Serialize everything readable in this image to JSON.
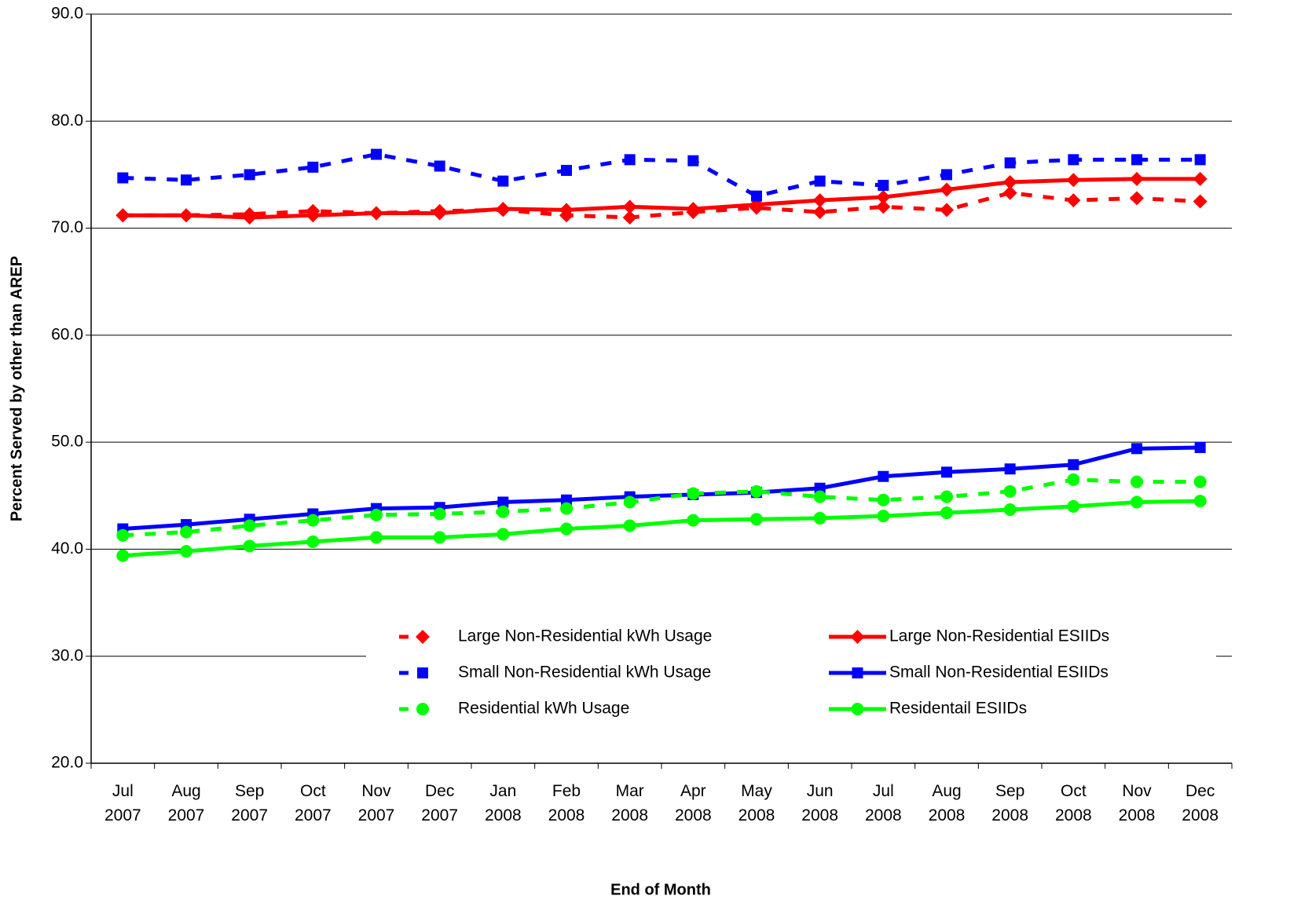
{
  "chart_data": {
    "type": "line",
    "x_label": "End of Month",
    "y_label": "Percent Served by other than AREP",
    "categories": [
      "Jul 2007",
      "Aug 2007",
      "Sep 2007",
      "Oct 2007",
      "Nov 2007",
      "Dec 2007",
      "Jan 2008",
      "Feb 2008",
      "Mar 2008",
      "Apr 2008",
      "May 2008",
      "Jun 2008",
      "Jul 2008",
      "Aug 2008",
      "Sep 2008",
      "Oct 2008",
      "Nov 2008",
      "Dec 2008"
    ],
    "ylim": [
      20,
      90
    ],
    "yticks": [
      {
        "value": 20,
        "label": "20.0"
      },
      {
        "value": 30,
        "label": "30.0"
      },
      {
        "value": 40,
        "label": "40.0"
      },
      {
        "value": 50,
        "label": "50.0"
      },
      {
        "value": 60,
        "label": "60.0"
      },
      {
        "value": 70,
        "label": "70.0"
      },
      {
        "value": 80,
        "label": "80.0"
      },
      {
        "value": 90,
        "label": "90.0"
      }
    ],
    "grid": true,
    "series": [
      {
        "name": "Large Non-Residential kWh Usage",
        "color": "#ff0000",
        "dashed": true,
        "marker": "diamond",
        "values": [
          71.2,
          71.2,
          71.3,
          71.6,
          71.4,
          71.6,
          71.7,
          71.2,
          71.0,
          71.5,
          71.9,
          71.5,
          72.0,
          71.7,
          73.3,
          72.6,
          72.8,
          72.5
        ]
      },
      {
        "name": "Large Non-Residential ESIIDs",
        "color": "#ff0000",
        "dashed": false,
        "marker": "diamond",
        "values": [
          71.2,
          71.2,
          71.0,
          71.2,
          71.4,
          71.4,
          71.8,
          71.7,
          72.0,
          71.8,
          72.2,
          72.6,
          72.9,
          73.6,
          74.3,
          74.5,
          74.6,
          74.6
        ]
      },
      {
        "name": "Small Non-Residential kWh Usage",
        "color": "#0000ff",
        "dashed": true,
        "marker": "square",
        "values": [
          74.7,
          74.5,
          75.0,
          75.7,
          76.9,
          75.8,
          74.4,
          75.4,
          76.4,
          76.3,
          73.0,
          74.4,
          74.0,
          75.0,
          76.1,
          76.4,
          76.4,
          76.4
        ]
      },
      {
        "name": "Small Non-Residential ESIIDs",
        "color": "#0000ff",
        "dashed": false,
        "marker": "square",
        "values": [
          41.9,
          42.3,
          42.8,
          43.3,
          43.8,
          43.9,
          44.4,
          44.6,
          44.9,
          45.1,
          45.3,
          45.7,
          46.8,
          47.2,
          47.5,
          47.9,
          49.4,
          49.5
        ]
      },
      {
        "name": "Residential kWh Usage",
        "color": "#00ff00",
        "dashed": true,
        "marker": "circle",
        "values": [
          41.3,
          41.6,
          42.2,
          42.7,
          43.2,
          43.3,
          43.5,
          43.8,
          44.4,
          45.2,
          45.4,
          44.9,
          44.6,
          44.9,
          45.4,
          46.5,
          46.3,
          46.3
        ]
      },
      {
        "name": "Residentail ESIIDs",
        "color": "#00ff00",
        "dashed": false,
        "marker": "circle",
        "values": [
          39.4,
          39.8,
          40.3,
          40.7,
          41.1,
          41.1,
          41.4,
          41.9,
          42.2,
          42.7,
          42.8,
          42.9,
          43.1,
          43.4,
          43.7,
          44.0,
          44.4,
          44.5
        ]
      }
    ]
  }
}
